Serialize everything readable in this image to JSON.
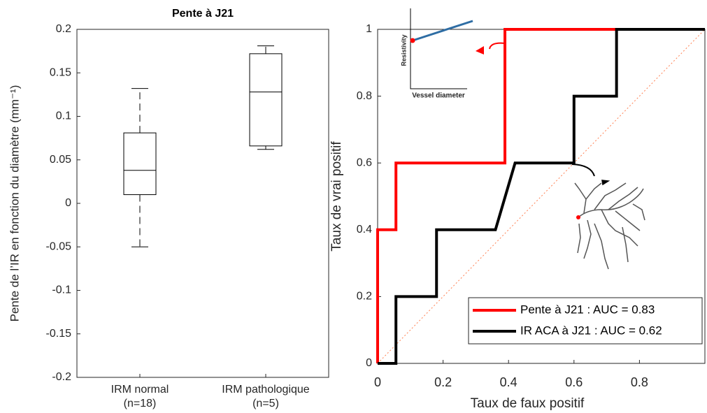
{
  "chart_data": [
    {
      "type": "box",
      "title": "Pente à J21",
      "y_label": "Pente de l’IR en fonction du diamètre (mm⁻¹)",
      "categories": [
        [
          "IRM normal",
          "(n=18)"
        ],
        [
          "IRM pathologique",
          "(n=5)"
        ]
      ],
      "boxes": [
        {
          "max": 0.132,
          "q3": 0.081,
          "median": 0.038,
          "q1": 0.01,
          "min": -0.05
        },
        {
          "max": 0.181,
          "q3": 0.172,
          "median": 0.128,
          "q1": 0.066,
          "min": 0.062
        }
      ],
      "color": "#000000",
      "ylim": [
        -0.2,
        0.2
      ],
      "yticks": [
        -0.2,
        -0.15,
        -0.1,
        -0.05,
        0,
        0.05,
        0.1,
        0.15,
        0.2
      ]
    },
    {
      "type": "line",
      "x_label": "Taux de faux positif",
      "y_label": "Taux de vrai positif",
      "series": [
        {
          "name": "Pente à J21 : AUC = 0.83",
          "color": "#ff0000",
          "x": [
            0,
            0,
            0.056,
            0.056,
            0.389,
            0.389,
            1
          ],
          "values": [
            0,
            0.4,
            0.4,
            0.6,
            0.6,
            1,
            1
          ]
        },
        {
          "name": "IR ACA à J21 : AUC = 0.62",
          "color": "#000000",
          "x": [
            0,
            0.056,
            0.056,
            0.18,
            0.18,
            0.36,
            0.42,
            0.6,
            0.6,
            0.73,
            0.73,
            1
          ],
          "values": [
            0,
            0,
            0.2,
            0.2,
            0.4,
            0.4,
            0.6,
            0.6,
            0.8,
            0.8,
            1,
            1
          ]
        }
      ],
      "diagonal_color": "#ff7f50",
      "legend": "lower right",
      "xlim": [
        0,
        1
      ],
      "ylim": [
        0,
        1
      ],
      "xticks": [
        0,
        0.2,
        0.4,
        0.6,
        0.8
      ],
      "yticks": [
        0,
        0.2,
        0.4,
        0.6,
        0.8,
        1
      ],
      "inset": {
        "y_label": "Resistivity",
        "x_label": "Vessel diameter"
      }
    }
  ]
}
